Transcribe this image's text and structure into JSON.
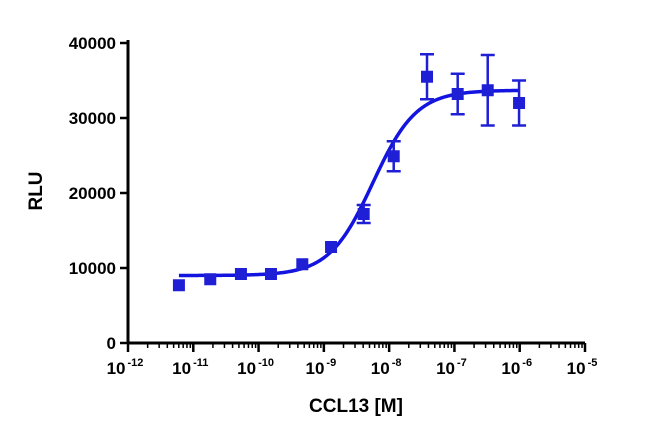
{
  "chart_data": {
    "type": "scatter",
    "title": "",
    "xlabel": "CCL13 [M]",
    "ylabel": "RLU",
    "xscale": "log10",
    "xlim_exponent": [
      -12,
      -5
    ],
    "ylim": [
      0,
      40000
    ],
    "x_tick_labels": [
      {
        "base": "10",
        "exp": "-12"
      },
      {
        "base": "10",
        "exp": "-11"
      },
      {
        "base": "10",
        "exp": "-10"
      },
      {
        "base": "10",
        "exp": "-9"
      },
      {
        "base": "10",
        "exp": "-8"
      },
      {
        "base": "10",
        "exp": "-7"
      },
      {
        "base": "10",
        "exp": "-6"
      },
      {
        "base": "10",
        "exp": "-5"
      }
    ],
    "y_ticks": [
      0,
      10000,
      20000,
      30000,
      40000
    ],
    "y_tick_labels": [
      "0",
      "10000",
      "20000",
      "30000",
      "40000"
    ],
    "marker_color": "#1f1fd6",
    "curve_color": "#1414e0",
    "series": [
      {
        "name": "CCL13",
        "log_x": [
          -11.22,
          -10.74,
          -10.27,
          -9.81,
          -9.33,
          -8.89,
          -8.39,
          -7.93,
          -7.42,
          -6.95,
          -6.49,
          -6.01
        ],
        "values": [
          7700,
          8500,
          9200,
          9200,
          10500,
          12800,
          17200,
          24900,
          35500,
          33200,
          33700,
          32000
        ],
        "error": [
          0,
          0,
          0,
          0,
          0,
          0,
          1200,
          2000,
          3000,
          2700,
          4700,
          3000
        ]
      }
    ],
    "fit": {
      "model": "4-parameter logistic",
      "bottom": 9000,
      "top": 33700,
      "log_ec50": -8.25,
      "hill_slope": 1.3,
      "log_x_range": [
        -11.22,
        -6.01
      ]
    }
  }
}
